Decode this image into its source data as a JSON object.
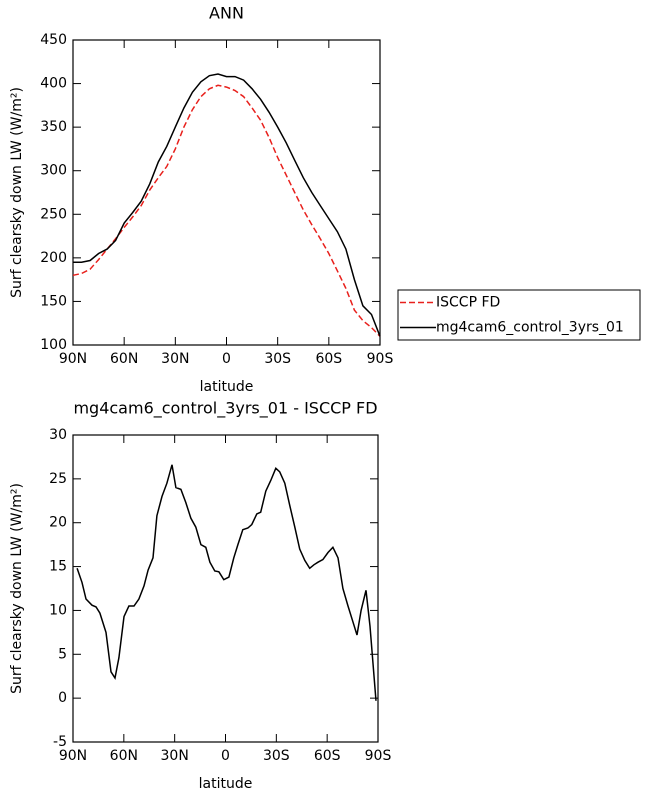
{
  "chart_data": [
    {
      "type": "line",
      "title": "ANN",
      "xlabel": "latitude",
      "ylabel": "Surf clearsky down LW (W/m²)",
      "xlim": [
        90,
        -90
      ],
      "xticks": [
        {
          "value": 90,
          "label": "90N"
        },
        {
          "value": 60,
          "label": "60N"
        },
        {
          "value": 30,
          "label": "30N"
        },
        0,
        {
          "value": -30,
          "label": "30S"
        },
        {
          "value": -60,
          "label": "60S"
        },
        {
          "value": -90,
          "label": "90S"
        }
      ],
      "ylim": [
        100,
        450
      ],
      "yticks": [
        100,
        150,
        200,
        250,
        300,
        350,
        400,
        450
      ],
      "legend": "right",
      "x": [
        90,
        85,
        80,
        75,
        70,
        65,
        60,
        55,
        50,
        45,
        40,
        35,
        30,
        25,
        20,
        15,
        10,
        5,
        0,
        -5,
        -10,
        -15,
        -20,
        -25,
        -30,
        -35,
        -40,
        -45,
        -50,
        -55,
        -60,
        -65,
        -70,
        -75,
        -80,
        -85,
        -90
      ],
      "series": [
        {
          "name": "ISCCP FD",
          "color": "#e8201c",
          "dash": true,
          "values": [
            180,
            182,
            187,
            198,
            210,
            222,
            235,
            247,
            260,
            278,
            292,
            305,
            325,
            350,
            370,
            385,
            394,
            398,
            396,
            392,
            385,
            372,
            358,
            338,
            315,
            295,
            275,
            255,
            238,
            222,
            205,
            185,
            165,
            140,
            128,
            120,
            110
          ]
        },
        {
          "name": "mg4cam6_control_3yrs_01",
          "color": "#000000",
          "dash": false,
          "values": [
            195,
            195,
            197,
            205,
            210,
            220,
            240,
            252,
            265,
            285,
            310,
            328,
            350,
            372,
            390,
            402,
            409,
            411,
            408,
            408,
            404,
            394,
            382,
            367,
            350,
            332,
            312,
            292,
            275,
            260,
            245,
            230,
            210,
            175,
            145,
            135,
            110
          ]
        }
      ]
    },
    {
      "type": "line",
      "title": "mg4cam6_control_3yrs_01 - ISCCP FD",
      "xlabel": "latitude",
      "ylabel": "Surf clearsky down LW (W/m²)",
      "xlim": [
        90,
        -90
      ],
      "xticks": [
        {
          "value": 90,
          "label": "90N"
        },
        {
          "value": 60,
          "label": "60N"
        },
        {
          "value": 30,
          "label": "30N"
        },
        0,
        {
          "value": -30,
          "label": "30S"
        },
        {
          "value": -60,
          "label": "60S"
        },
        {
          "value": -90,
          "label": "90S"
        }
      ],
      "ylim": [
        -5,
        30
      ],
      "yticks": [
        -5,
        0,
        5,
        10,
        15,
        20,
        25,
        30
      ],
      "x": [
        87.6,
        84.7,
        82.3,
        78.8,
        76.4,
        74.1,
        70.5,
        67.6,
        65.2,
        62.9,
        59.9,
        57.0,
        54.0,
        51.1,
        48.1,
        45.7,
        42.8,
        40.5,
        37.5,
        34.6,
        31.6,
        29.3,
        26.3,
        23.4,
        20.4,
        17.5,
        14.5,
        11.6,
        9.2,
        6.3,
        3.9,
        1.0,
        -2.0,
        -4.9,
        -7.3,
        -10.2,
        -13.2,
        -15.5,
        -18.5,
        -20.8,
        -23.8,
        -26.7,
        -29.7,
        -32.0,
        -35.0,
        -37.9,
        -40.9,
        -43.8,
        -46.8,
        -49.7,
        -52.2,
        -54.6,
        -57.5,
        -60.5,
        -63.4,
        -66.4,
        -69.3,
        -72.3,
        -74.7,
        -77.6,
        -80.0,
        -82.9,
        -85.3,
        -88.8
      ],
      "series": [
        {
          "color": "#000000",
          "dash": false,
          "values": [
            14.8,
            13.2,
            11.3,
            10.6,
            10.4,
            9.7,
            7.5,
            3,
            2.3,
            4.6,
            9.3,
            10.5,
            10.5,
            11.3,
            12.8,
            14.6,
            16,
            20.8,
            23,
            24.5,
            26.6,
            24,
            23.8,
            22.3,
            20.5,
            19.5,
            17.5,
            17.2,
            15.5,
            14.5,
            14.4,
            13.5,
            13.8,
            16,
            17.5,
            19.2,
            19.4,
            19.8,
            21,
            21.2,
            23.6,
            24.8,
            26.2,
            25.8,
            24.5,
            22,
            19.5,
            17,
            15.7,
            14.8,
            15.2,
            15.5,
            15.8,
            16.6,
            17.2,
            16,
            12.5,
            10.5,
            9,
            7.2,
            10,
            12.3,
            8.2,
            -0.3
          ]
        }
      ]
    }
  ]
}
